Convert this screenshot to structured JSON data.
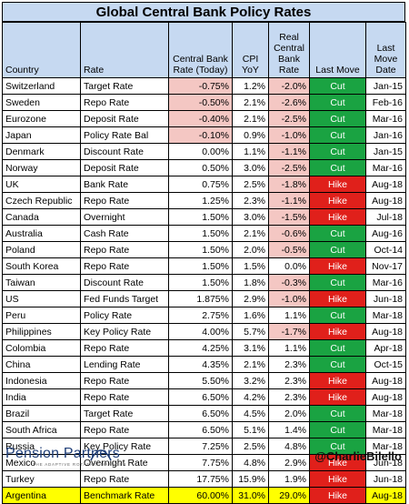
{
  "title": "Global Central Bank Policy Rates",
  "headers": {
    "country": "Country",
    "rate": "Rate",
    "cb_rate": "Central Bank Rate (Today)",
    "cpi": "CPI YoY",
    "real_rate": "Real Central Bank Rate",
    "last_move": "Last Move",
    "last_move_date": "Last Move Date"
  },
  "rows": [
    {
      "country": "Switzerland",
      "rate": "Target Rate",
      "cb": "-0.75%",
      "cpi": "1.2%",
      "real": "-2.0%",
      "move": "Cut",
      "date": "Jan-15"
    },
    {
      "country": "Sweden",
      "rate": "Repo Rate",
      "cb": "-0.50%",
      "cpi": "2.1%",
      "real": "-2.6%",
      "move": "Cut",
      "date": "Feb-16"
    },
    {
      "country": "Eurozone",
      "rate": "Deposit Rate",
      "cb": "-0.40%",
      "cpi": "2.1%",
      "real": "-2.5%",
      "move": "Cut",
      "date": "Mar-16"
    },
    {
      "country": "Japan",
      "rate": "Policy Rate Bal",
      "cb": "-0.10%",
      "cpi": "0.9%",
      "real": "-1.0%",
      "move": "Cut",
      "date": "Jan-16"
    },
    {
      "country": "Denmark",
      "rate": "Discount Rate",
      "cb": "0.00%",
      "cpi": "1.1%",
      "real": "-1.1%",
      "move": "Cut",
      "date": "Jan-15"
    },
    {
      "country": "Norway",
      "rate": "Deposit Rate",
      "cb": "0.50%",
      "cpi": "3.0%",
      "real": "-2.5%",
      "move": "Cut",
      "date": "Mar-16"
    },
    {
      "country": "UK",
      "rate": "Bank Rate",
      "cb": "0.75%",
      "cpi": "2.5%",
      "real": "-1.8%",
      "move": "Hike",
      "date": "Aug-18"
    },
    {
      "country": "Czech Republic",
      "rate": "Repo Rate",
      "cb": "1.25%",
      "cpi": "2.3%",
      "real": "-1.1%",
      "move": "Hike",
      "date": "Aug-18"
    },
    {
      "country": "Canada",
      "rate": "Overnight",
      "cb": "1.50%",
      "cpi": "3.0%",
      "real": "-1.5%",
      "move": "Hike",
      "date": "Jul-18"
    },
    {
      "country": "Australia",
      "rate": "Cash Rate",
      "cb": "1.50%",
      "cpi": "2.1%",
      "real": "-0.6%",
      "move": "Cut",
      "date": "Aug-16"
    },
    {
      "country": "Poland",
      "rate": "Repo Rate",
      "cb": "1.50%",
      "cpi": "2.0%",
      "real": "-0.5%",
      "move": "Cut",
      "date": "Oct-14"
    },
    {
      "country": "South Korea",
      "rate": "Repo Rate",
      "cb": "1.50%",
      "cpi": "1.5%",
      "real": "0.0%",
      "move": "Hike",
      "date": "Nov-17"
    },
    {
      "country": "Taiwan",
      "rate": "Discount Rate",
      "cb": "1.50%",
      "cpi": "1.8%",
      "real": "-0.3%",
      "move": "Cut",
      "date": "Mar-16"
    },
    {
      "country": "US",
      "rate": "Fed Funds Target",
      "cb": "1.875%",
      "cpi": "2.9%",
      "real": "-1.0%",
      "move": "Hike",
      "date": "Jun-18"
    },
    {
      "country": "Peru",
      "rate": "Policy Rate",
      "cb": "2.75%",
      "cpi": "1.6%",
      "real": "1.1%",
      "move": "Cut",
      "date": "Mar-18"
    },
    {
      "country": "Philippines",
      "rate": "Key Policy Rate",
      "cb": "4.00%",
      "cpi": "5.7%",
      "real": "-1.7%",
      "move": "Hike",
      "date": "Aug-18"
    },
    {
      "country": "Colombia",
      "rate": "Repo Rate",
      "cb": "4.25%",
      "cpi": "3.1%",
      "real": "1.1%",
      "move": "Cut",
      "date": "Apr-18"
    },
    {
      "country": "China",
      "rate": "Lending Rate",
      "cb": "4.35%",
      "cpi": "2.1%",
      "real": "2.3%",
      "move": "Cut",
      "date": "Oct-15"
    },
    {
      "country": "Indonesia",
      "rate": "Repo Rate",
      "cb": "5.50%",
      "cpi": "3.2%",
      "real": "2.3%",
      "move": "Hike",
      "date": "Aug-18"
    },
    {
      "country": "India",
      "rate": "Repo Rate",
      "cb": "6.50%",
      "cpi": "4.2%",
      "real": "2.3%",
      "move": "Hike",
      "date": "Aug-18"
    },
    {
      "country": "Brazil",
      "rate": "Target Rate",
      "cb": "6.50%",
      "cpi": "4.5%",
      "real": "2.0%",
      "move": "Cut",
      "date": "Mar-18"
    },
    {
      "country": "South Africa",
      "rate": "Repo Rate",
      "cb": "6.50%",
      "cpi": "5.1%",
      "real": "1.4%",
      "move": "Cut",
      "date": "Mar-18"
    },
    {
      "country": "Russia",
      "rate": "Key Policy Rate",
      "cb": "7.25%",
      "cpi": "2.5%",
      "real": "4.8%",
      "move": "Cut",
      "date": "Mar-18"
    },
    {
      "country": "Mexico",
      "rate": "Overnight Rate",
      "cb": "7.75%",
      "cpi": "4.8%",
      "real": "2.9%",
      "move": "Hike",
      "date": "Jun-18"
    },
    {
      "country": "Turkey",
      "rate": "Repo Rate",
      "cb": "17.75%",
      "cpi": "15.9%",
      "real": "1.9%",
      "move": "Hike",
      "date": "Jun-18"
    },
    {
      "country": "Argentina",
      "rate": "Benchmark Rate",
      "cb": "60.00%",
      "cpi": "31.0%",
      "real": "29.0%",
      "move": "Hike",
      "date": "Aug-18",
      "highlight": true
    }
  ],
  "footer": {
    "logo_text": "Pension Partners",
    "logo_tagline": "THE ADAPTIVE ROTATION MANAGER",
    "handle": "@CharlieBilello"
  },
  "colors": {
    "header_bg": "#c6d9f1",
    "negative_bg": "#f4c7c3",
    "cut_bg": "#1aa342",
    "hike_bg": "#e0201b",
    "highlight_bg": "#ffff00",
    "logo_color": "#1f3e78"
  },
  "icons": {
    "logo": "pension-partners-logo-icon"
  }
}
